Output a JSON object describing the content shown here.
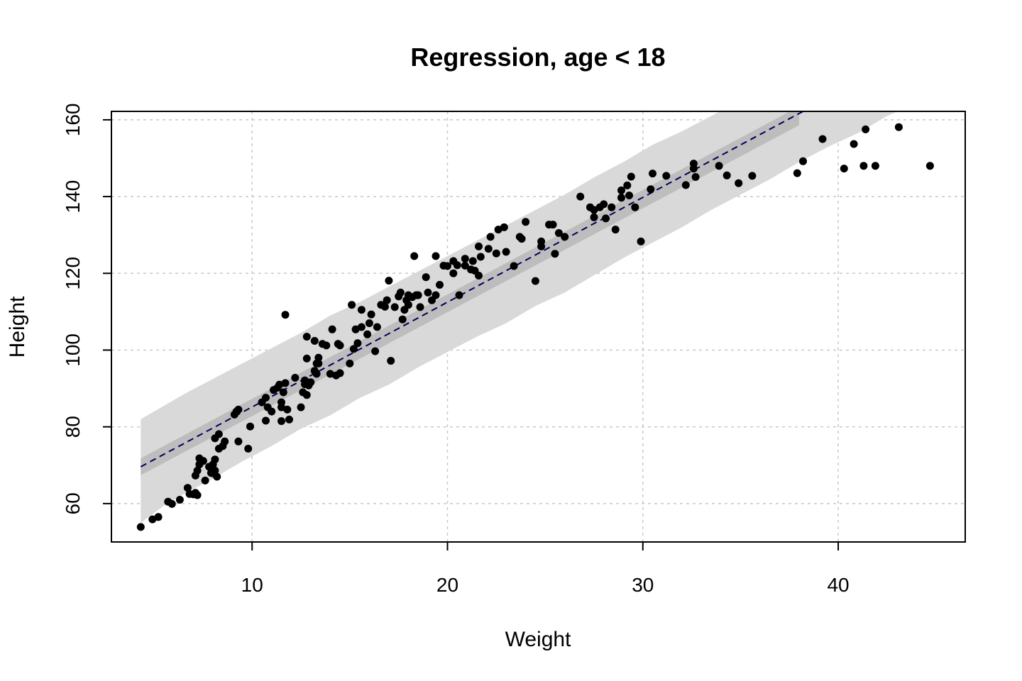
{
  "chart_data": {
    "type": "scatter",
    "title": "Regression, age < 18",
    "xlabel": "Weight",
    "ylabel": "Height",
    "xlim": [
      2.8,
      46.5
    ],
    "ylim": [
      50,
      162.2
    ],
    "xticks": [
      10,
      20,
      30,
      40
    ],
    "yticks": [
      60,
      80,
      100,
      120,
      140,
      160
    ],
    "xtick_labels": [
      "10",
      "20",
      "30",
      "40"
    ],
    "ytick_labels": [
      "60",
      "80",
      "100",
      "120",
      "140",
      "160"
    ],
    "grid": true,
    "colors": {
      "points": "#000000",
      "regression_line": "#00005a",
      "mean_interval": "#bdbdbd",
      "prediction_interval": "#d9d9d9",
      "grid": "#c8c8c8"
    },
    "regression_line": {
      "style": "dashed",
      "x": [
        4.3,
        38.2
      ],
      "y": [
        69.6,
        162.2
      ]
    },
    "mean_interval": {
      "x": [
        4.3,
        38.0
      ],
      "lower": [
        67.4,
        158.6
      ],
      "upper": [
        71.8,
        163.5
      ]
    },
    "prediction_interval": {
      "x": [
        4.3,
        5.5,
        6.5,
        8.0,
        9.5,
        11.0,
        12.5,
        14.0,
        15.5,
        17.0,
        18.5,
        20.0,
        21.5,
        23.0,
        24.5,
        26.0,
        27.5,
        29.0,
        30.5,
        32.0,
        33.5,
        35.0,
        36.5,
        38.0,
        39.5,
        41.0,
        42.5,
        43.8
      ],
      "lower": [
        55.0,
        59.5,
        62.5,
        66.5,
        71.0,
        75.0,
        79.5,
        83.0,
        87.5,
        91.0,
        95.5,
        99.5,
        103.5,
        107.0,
        111.5,
        115.0,
        119.5,
        124.0,
        128.0,
        132.0,
        136.5,
        140.5,
        144.5,
        149.0,
        153.0,
        156.5,
        161.0,
        164.0
      ],
      "upper": [
        82.0,
        85.5,
        88.5,
        92.5,
        96.5,
        100.5,
        104.5,
        109.0,
        112.5,
        116.5,
        120.5,
        124.5,
        128.5,
        132.5,
        136.5,
        140.5,
        145.0,
        149.0,
        153.5,
        157.0,
        161.0,
        165.0,
        169.0,
        172.0,
        175.0,
        178.0,
        181.0,
        184.0
      ]
    },
    "points": [
      [
        4.3,
        53.9
      ],
      [
        4.9,
        55.9
      ],
      [
        5.2,
        56.5
      ],
      [
        5.7,
        60.5
      ],
      [
        5.9,
        59.9
      ],
      [
        6.3,
        61.0
      ],
      [
        6.7,
        64.1
      ],
      [
        6.8,
        62.5
      ],
      [
        7.0,
        62.4
      ],
      [
        7.1,
        62.8
      ],
      [
        7.1,
        67.3
      ],
      [
        7.2,
        62.2
      ],
      [
        7.2,
        68.6
      ],
      [
        7.3,
        70.2
      ],
      [
        7.3,
        71.8
      ],
      [
        7.5,
        71.1
      ],
      [
        7.6,
        66.0
      ],
      [
        7.8,
        69.6
      ],
      [
        7.9,
        68.0
      ],
      [
        8.0,
        67.9
      ],
      [
        8.0,
        70.2
      ],
      [
        8.1,
        71.5
      ],
      [
        8.1,
        77.0
      ],
      [
        8.1,
        68.6
      ],
      [
        8.2,
        67.0
      ],
      [
        8.3,
        78.1
      ],
      [
        8.3,
        74.3
      ],
      [
        8.5,
        75.0
      ],
      [
        8.6,
        76.2
      ],
      [
        9.1,
        83.2
      ],
      [
        9.2,
        84.0
      ],
      [
        9.3,
        76.2
      ],
      [
        9.3,
        84.5
      ],
      [
        9.8,
        74.3
      ],
      [
        9.9,
        80.1
      ],
      [
        10.5,
        86.4
      ],
      [
        10.7,
        87.6
      ],
      [
        10.7,
        81.6
      ],
      [
        10.8,
        85.1
      ],
      [
        11.0,
        84.0
      ],
      [
        11.1,
        89.6
      ],
      [
        11.3,
        90.2
      ],
      [
        11.4,
        91.0
      ],
      [
        11.5,
        85.1
      ],
      [
        11.5,
        86.4
      ],
      [
        11.5,
        81.5
      ],
      [
        11.6,
        89.0
      ],
      [
        11.7,
        91.4
      ],
      [
        11.7,
        109.2
      ],
      [
        11.8,
        84.5
      ],
      [
        11.9,
        81.9
      ],
      [
        12.2,
        92.8
      ],
      [
        12.5,
        85.1
      ],
      [
        12.6,
        89.0
      ],
      [
        12.7,
        92.1
      ],
      [
        12.7,
        91.1
      ],
      [
        12.8,
        103.5
      ],
      [
        12.8,
        97.8
      ],
      [
        12.8,
        88.3
      ],
      [
        12.9,
        90.8
      ],
      [
        13.0,
        91.6
      ],
      [
        13.2,
        94.6
      ],
      [
        13.2,
        102.4
      ],
      [
        13.3,
        93.8
      ],
      [
        13.3,
        96.5
      ],
      [
        13.4,
        96.5
      ],
      [
        13.4,
        98.0
      ],
      [
        13.6,
        101.6
      ],
      [
        13.8,
        101.2
      ],
      [
        14.0,
        93.8
      ],
      [
        14.1,
        105.4
      ],
      [
        14.3,
        93.4
      ],
      [
        14.4,
        101.6
      ],
      [
        14.5,
        101.2
      ],
      [
        14.5,
        94.0
      ],
      [
        15.0,
        96.5
      ],
      [
        15.1,
        111.8
      ],
      [
        15.2,
        100.3
      ],
      [
        15.3,
        105.4
      ],
      [
        15.4,
        101.8
      ],
      [
        15.6,
        110.5
      ],
      [
        15.6,
        106.0
      ],
      [
        15.9,
        104.1
      ],
      [
        16.0,
        107.0
      ],
      [
        16.1,
        109.3
      ],
      [
        16.3,
        99.7
      ],
      [
        16.4,
        106.0
      ],
      [
        16.6,
        111.8
      ],
      [
        16.8,
        111.3
      ],
      [
        16.9,
        113.0
      ],
      [
        17.0,
        118.1
      ],
      [
        17.1,
        97.2
      ],
      [
        17.3,
        111.2
      ],
      [
        17.5,
        114.0
      ],
      [
        17.6,
        115.0
      ],
      [
        17.7,
        108.0
      ],
      [
        17.8,
        110.5
      ],
      [
        17.9,
        113.0
      ],
      [
        18.0,
        114.3
      ],
      [
        18.0,
        111.8
      ],
      [
        18.2,
        113.8
      ],
      [
        18.3,
        124.5
      ],
      [
        18.4,
        114.3
      ],
      [
        18.5,
        114.3
      ],
      [
        18.6,
        111.2
      ],
      [
        18.9,
        119.0
      ],
      [
        19.0,
        115.0
      ],
      [
        19.2,
        113.0
      ],
      [
        19.4,
        114.3
      ],
      [
        19.4,
        124.5
      ],
      [
        19.6,
        117.0
      ],
      [
        19.8,
        122.0
      ],
      [
        20.0,
        121.9
      ],
      [
        20.3,
        123.2
      ],
      [
        20.3,
        120.0
      ],
      [
        20.5,
        122.1
      ],
      [
        20.6,
        114.3
      ],
      [
        20.9,
        122.0
      ],
      [
        20.9,
        123.8
      ],
      [
        21.2,
        121.0
      ],
      [
        21.3,
        123.2
      ],
      [
        21.4,
        120.7
      ],
      [
        21.6,
        119.4
      ],
      [
        21.6,
        127.0
      ],
      [
        21.7,
        124.3
      ],
      [
        22.1,
        126.4
      ],
      [
        22.2,
        129.5
      ],
      [
        22.5,
        125.2
      ],
      [
        22.6,
        131.4
      ],
      [
        22.9,
        132.0
      ],
      [
        23.0,
        125.6
      ],
      [
        23.4,
        121.9
      ],
      [
        23.7,
        129.5
      ],
      [
        23.8,
        129.0
      ],
      [
        24.0,
        133.4
      ],
      [
        24.5,
        118.0
      ],
      [
        24.8,
        127.0
      ],
      [
        24.8,
        128.3
      ],
      [
        25.2,
        132.7
      ],
      [
        25.4,
        132.7
      ],
      [
        25.5,
        125.1
      ],
      [
        25.7,
        130.5
      ],
      [
        26.0,
        129.5
      ],
      [
        26.8,
        140.0
      ],
      [
        27.3,
        137.2
      ],
      [
        27.5,
        134.6
      ],
      [
        27.5,
        136.5
      ],
      [
        27.8,
        137.2
      ],
      [
        28.0,
        138.0
      ],
      [
        28.1,
        134.3
      ],
      [
        28.4,
        137.2
      ],
      [
        28.6,
        131.4
      ],
      [
        28.9,
        139.7
      ],
      [
        28.9,
        141.6
      ],
      [
        29.2,
        142.9
      ],
      [
        29.3,
        140.3
      ],
      [
        29.4,
        145.2
      ],
      [
        29.6,
        137.2
      ],
      [
        29.9,
        128.3
      ],
      [
        30.4,
        141.9
      ],
      [
        30.5,
        146.0
      ],
      [
        31.2,
        145.4
      ],
      [
        32.2,
        143.0
      ],
      [
        32.6,
        147.3
      ],
      [
        32.6,
        148.6
      ],
      [
        32.7,
        145.1
      ],
      [
        33.9,
        148.0
      ],
      [
        34.3,
        145.5
      ],
      [
        34.9,
        143.5
      ],
      [
        35.6,
        145.4
      ],
      [
        37.9,
        146.1
      ],
      [
        38.2,
        149.2
      ],
      [
        39.2,
        155.0
      ],
      [
        40.3,
        147.3
      ],
      [
        40.8,
        153.7
      ],
      [
        41.3,
        148.0
      ],
      [
        41.4,
        157.5
      ],
      [
        41.9,
        148.0
      ],
      [
        43.1,
        158.1
      ],
      [
        44.7,
        148.0
      ]
    ]
  }
}
